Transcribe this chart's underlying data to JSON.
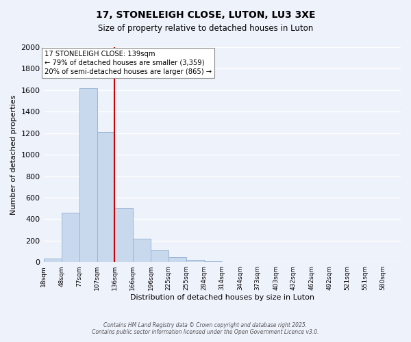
{
  "title": "17, STONELEIGH CLOSE, LUTON, LU3 3XE",
  "subtitle": "Size of property relative to detached houses in Luton",
  "xlabel": "Distribution of detached houses by size in Luton",
  "ylabel": "Number of detached properties",
  "bar_color": "#c8d9ee",
  "bar_edge_color": "#9ab5d5",
  "background_color": "#eef2fb",
  "grid_color": "#ffffff",
  "vline_x": 136,
  "vline_color": "#cc0000",
  "bin_edges": [
    18,
    48,
    77,
    107,
    136,
    166,
    196,
    225,
    255,
    284,
    314,
    344,
    373,
    403,
    432,
    462,
    492,
    521,
    551,
    580,
    610
  ],
  "bar_heights": [
    35,
    460,
    1620,
    1210,
    505,
    215,
    110,
    45,
    20,
    5,
    0,
    0,
    0,
    0,
    0,
    0,
    0,
    0,
    0,
    0
  ],
  "ylim": [
    0,
    2000
  ],
  "yticks": [
    0,
    200,
    400,
    600,
    800,
    1000,
    1200,
    1400,
    1600,
    1800,
    2000
  ],
  "annotation_title": "17 STONELEIGH CLOSE: 139sqm",
  "annotation_line1": "← 79% of detached houses are smaller (3,359)",
  "annotation_line2": "20% of semi-detached houses are larger (865) →",
  "annotation_box_color": "#ffffff",
  "annotation_box_edge": "#888888",
  "footer1": "Contains HM Land Registry data © Crown copyright and database right 2025.",
  "footer2": "Contains public sector information licensed under the Open Government Licence v3.0."
}
